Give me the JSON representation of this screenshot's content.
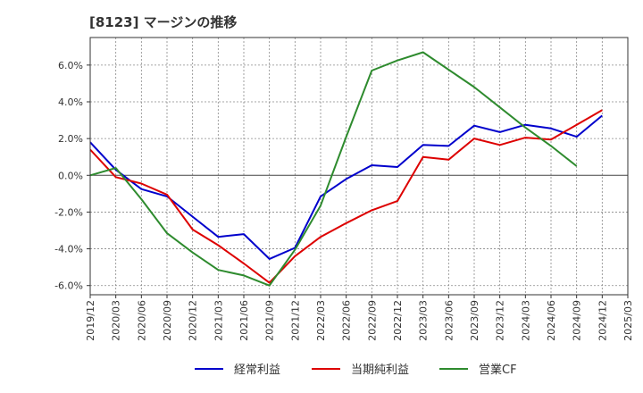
{
  "chart_data": {
    "type": "line",
    "title": "[8123]  マージンの推移",
    "xlabel": "",
    "ylabel": "",
    "x": [
      "2019/12",
      "2020/03",
      "2020/06",
      "2020/09",
      "2020/12",
      "2021/03",
      "2021/06",
      "2021/09",
      "2021/12",
      "2022/03",
      "2022/06",
      "2022/09",
      "2022/12",
      "2023/03",
      "2023/06",
      "2023/09",
      "2023/12",
      "2024/03",
      "2024/06",
      "2024/09",
      "2024/12"
    ],
    "x_ticks": [
      "2019/12",
      "2020/03",
      "2020/06",
      "2020/09",
      "2020/12",
      "2021/03",
      "2021/06",
      "2021/09",
      "2021/12",
      "2022/03",
      "2022/06",
      "2022/09",
      "2022/12",
      "2023/03",
      "2023/06",
      "2023/09",
      "2023/12",
      "2024/03",
      "2024/06",
      "2024/09",
      "2024/12",
      "2025/03"
    ],
    "y_ticks": [
      -6.0,
      -4.0,
      -2.0,
      0.0,
      2.0,
      4.0,
      6.0
    ],
    "y_tick_labels": [
      "-6.0%",
      "-4.0%",
      "-2.0%",
      "0.0%",
      "2.0%",
      "4.0%",
      "6.0%"
    ],
    "ylim": [
      -6.5,
      7.5
    ],
    "grid": true,
    "legend_position": "bottom",
    "series": [
      {
        "name": "経常利益",
        "color": "#0000cc",
        "values": [
          1.8,
          0.3,
          -0.75,
          -1.15,
          -2.25,
          -3.35,
          -3.2,
          -4.55,
          -3.95,
          -1.15,
          -0.2,
          0.55,
          0.45,
          1.65,
          1.6,
          2.7,
          2.35,
          2.75,
          2.55,
          2.1,
          3.25
        ]
      },
      {
        "name": "当期純利益",
        "color": "#dd0000",
        "values": [
          1.4,
          -0.1,
          -0.45,
          -1.05,
          -2.95,
          -3.8,
          -4.8,
          -5.85,
          -4.4,
          -3.35,
          -2.6,
          -1.9,
          -1.4,
          1.0,
          0.85,
          2.0,
          1.65,
          2.05,
          1.95,
          2.75,
          3.55
        ]
      },
      {
        "name": "営業CF",
        "color": "#2e8b2e",
        "values": [
          0.0,
          0.4,
          -1.3,
          -3.15,
          -4.2,
          -5.15,
          -5.45,
          -6.0,
          -4.05,
          -1.65,
          2.1,
          5.7,
          6.25,
          6.7,
          5.75,
          4.8,
          3.7,
          2.6,
          1.6,
          0.5,
          null
        ]
      }
    ]
  }
}
